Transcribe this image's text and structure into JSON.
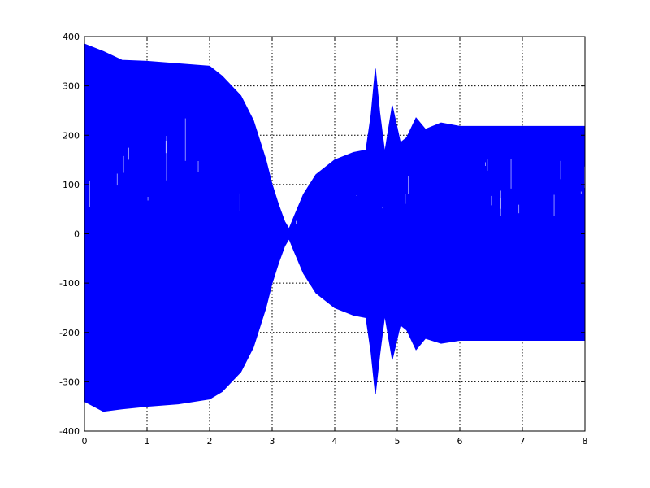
{
  "chart_data": {
    "type": "line",
    "title": "",
    "xlabel": "",
    "ylabel": "",
    "xlim": [
      0,
      8
    ],
    "ylim": [
      -400,
      400
    ],
    "grid": true,
    "legend": "none",
    "x_ticks": [
      "0",
      "1",
      "2",
      "3",
      "4",
      "5",
      "6",
      "7",
      "8"
    ],
    "y_ticks": [
      "400",
      "300",
      "200",
      "100",
      "0",
      "-100",
      "-200",
      "-300",
      "-400"
    ],
    "series": [
      {
        "color": "#0000ff",
        "style": "dense-oscillation-envelope",
        "envelope_upper": [
          {
            "x": 0.0,
            "y": 385
          },
          {
            "x": 0.3,
            "y": 370
          },
          {
            "x": 0.6,
            "y": 352
          },
          {
            "x": 1.0,
            "y": 350
          },
          {
            "x": 1.5,
            "y": 345
          },
          {
            "x": 2.0,
            "y": 340
          },
          {
            "x": 2.2,
            "y": 320
          },
          {
            "x": 2.5,
            "y": 280
          },
          {
            "x": 2.7,
            "y": 230
          },
          {
            "x": 2.9,
            "y": 150
          },
          {
            "x": 3.0,
            "y": 100
          },
          {
            "x": 3.1,
            "y": 60
          },
          {
            "x": 3.2,
            "y": 25
          },
          {
            "x": 3.27,
            "y": 10
          },
          {
            "x": 3.35,
            "y": 35
          },
          {
            "x": 3.5,
            "y": 80
          },
          {
            "x": 3.7,
            "y": 120
          },
          {
            "x": 4.0,
            "y": 150
          },
          {
            "x": 4.3,
            "y": 165
          },
          {
            "x": 4.5,
            "y": 170
          },
          {
            "x": 4.58,
            "y": 240
          },
          {
            "x": 4.65,
            "y": 335
          },
          {
            "x": 4.72,
            "y": 245
          },
          {
            "x": 4.8,
            "y": 165
          },
          {
            "x": 4.92,
            "y": 260
          },
          {
            "x": 5.05,
            "y": 185
          },
          {
            "x": 5.15,
            "y": 195
          },
          {
            "x": 5.3,
            "y": 235
          },
          {
            "x": 5.45,
            "y": 212
          },
          {
            "x": 5.7,
            "y": 225
          },
          {
            "x": 6.0,
            "y": 218
          },
          {
            "x": 7.0,
            "y": 218
          },
          {
            "x": 8.0,
            "y": 218
          }
        ],
        "envelope_lower": [
          {
            "x": 0.0,
            "y": -340
          },
          {
            "x": 0.3,
            "y": -360
          },
          {
            "x": 0.6,
            "y": -355
          },
          {
            "x": 1.0,
            "y": -350
          },
          {
            "x": 1.5,
            "y": -345
          },
          {
            "x": 2.0,
            "y": -335
          },
          {
            "x": 2.2,
            "y": -320
          },
          {
            "x": 2.5,
            "y": -280
          },
          {
            "x": 2.7,
            "y": -230
          },
          {
            "x": 2.9,
            "y": -150
          },
          {
            "x": 3.0,
            "y": -100
          },
          {
            "x": 3.1,
            "y": -60
          },
          {
            "x": 3.2,
            "y": -25
          },
          {
            "x": 3.27,
            "y": -10
          },
          {
            "x": 3.35,
            "y": -35
          },
          {
            "x": 3.5,
            "y": -80
          },
          {
            "x": 3.7,
            "y": -120
          },
          {
            "x": 4.0,
            "y": -150
          },
          {
            "x": 4.3,
            "y": -165
          },
          {
            "x": 4.5,
            "y": -170
          },
          {
            "x": 4.58,
            "y": -240
          },
          {
            "x": 4.65,
            "y": -325
          },
          {
            "x": 4.72,
            "y": -245
          },
          {
            "x": 4.8,
            "y": -165
          },
          {
            "x": 4.92,
            "y": -255
          },
          {
            "x": 5.05,
            "y": -185
          },
          {
            "x": 5.15,
            "y": -195
          },
          {
            "x": 5.3,
            "y": -235
          },
          {
            "x": 5.45,
            "y": -212
          },
          {
            "x": 5.7,
            "y": -222
          },
          {
            "x": 6.0,
            "y": -216
          },
          {
            "x": 7.0,
            "y": -216
          },
          {
            "x": 8.0,
            "y": -216
          }
        ]
      }
    ]
  }
}
